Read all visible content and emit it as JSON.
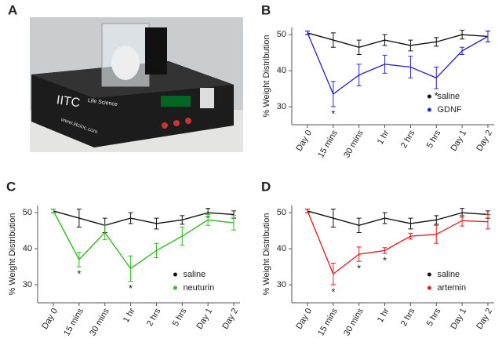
{
  "photo": {
    "panel": "A",
    "texts": [
      "IITC",
      "Life Science",
      "www.iitcinc.com"
    ]
  },
  "chart_data": [
    {
      "type": "line",
      "panel": "B",
      "y_label": "% Weight Distribution",
      "categories": [
        "Day 0",
        "15 mins",
        "30 mins",
        "1 hr",
        "2 hrs",
        "5 hrs",
        "Day 1",
        "Day 2"
      ],
      "ylim": [
        25,
        52
      ],
      "yticks": [
        30,
        40,
        50
      ],
      "legend": "lower right",
      "series": [
        {
          "name": "saline",
          "color": "#111111",
          "values": [
            50.5,
            48.5,
            46.5,
            48.5,
            47,
            48,
            50,
            49.5
          ],
          "errors": [
            0.5,
            2,
            2,
            1.5,
            1.5,
            1.2,
            1.2,
            1.5
          ]
        },
        {
          "name": "GDNF",
          "color": "#2a2acc",
          "values": [
            50.5,
            33.5,
            38.8,
            41.8,
            41,
            38,
            45.5,
            49.5
          ],
          "errors": [
            0.5,
            3.5,
            3,
            2.5,
            3,
            3,
            1,
            1.5
          ]
        }
      ],
      "annotations": [
        {
          "text": "*",
          "x": "15 mins"
        },
        {
          "text": "*",
          "x": "5 hrs"
        }
      ]
    },
    {
      "type": "line",
      "panel": "C",
      "y_label": "% Weight Distribution",
      "categories": [
        "Day 0",
        "15 mins",
        "30 mins",
        "1 hr",
        "2 hrs",
        "5 hrs",
        "Day 1",
        "Day 2"
      ],
      "ylim": [
        25,
        52
      ],
      "yticks": [
        30,
        40,
        50
      ],
      "legend": "lower right",
      "series": [
        {
          "name": "saline",
          "color": "#111111",
          "values": [
            50.5,
            48.5,
            46.5,
            48.5,
            47,
            48,
            50,
            49.5
          ],
          "errors": [
            0.5,
            2.5,
            2,
            1.5,
            1.5,
            1.2,
            1.2,
            1
          ]
        },
        {
          "name": "neuturin",
          "color": "#33bb22",
          "values": [
            50.5,
            37,
            44.5,
            34.5,
            39.5,
            43.5,
            48,
            47.2
          ],
          "errors": [
            0.5,
            2,
            2,
            3.5,
            2,
            2.5,
            1.5,
            2
          ]
        }
      ],
      "annotations": [
        {
          "text": "*",
          "x": "15 mins"
        },
        {
          "text": "*",
          "x": "1 hr"
        }
      ]
    },
    {
      "type": "line",
      "panel": "D",
      "y_label": "% Weight Distribution",
      "categories": [
        "Day 0",
        "15 mins",
        "30 mins",
        "1 hr",
        "2 hrs",
        "5 hrs",
        "Day 1",
        "Day 2"
      ],
      "ylim": [
        25,
        52
      ],
      "yticks": [
        30,
        40,
        50
      ],
      "legend": "lower right",
      "series": [
        {
          "name": "saline",
          "color": "#111111",
          "values": [
            50.5,
            48.5,
            46.5,
            48.5,
            47,
            48,
            50,
            49.5
          ],
          "errors": [
            0.5,
            2.5,
            2,
            1.5,
            1.5,
            1.2,
            1.2,
            1
          ]
        },
        {
          "name": "artemin",
          "color": "#dd2222",
          "values": [
            50.5,
            33,
            38.5,
            39.5,
            43.5,
            44,
            47.8,
            47.5
          ],
          "errors": [
            0.5,
            3,
            2,
            0.8,
            0.8,
            2.5,
            1.5,
            2
          ]
        }
      ],
      "annotations": [
        {
          "text": "*",
          "x": "15 mins"
        },
        {
          "text": "*",
          "x": "30 mins"
        },
        {
          "text": "*",
          "x": "1 hr"
        }
      ]
    }
  ]
}
